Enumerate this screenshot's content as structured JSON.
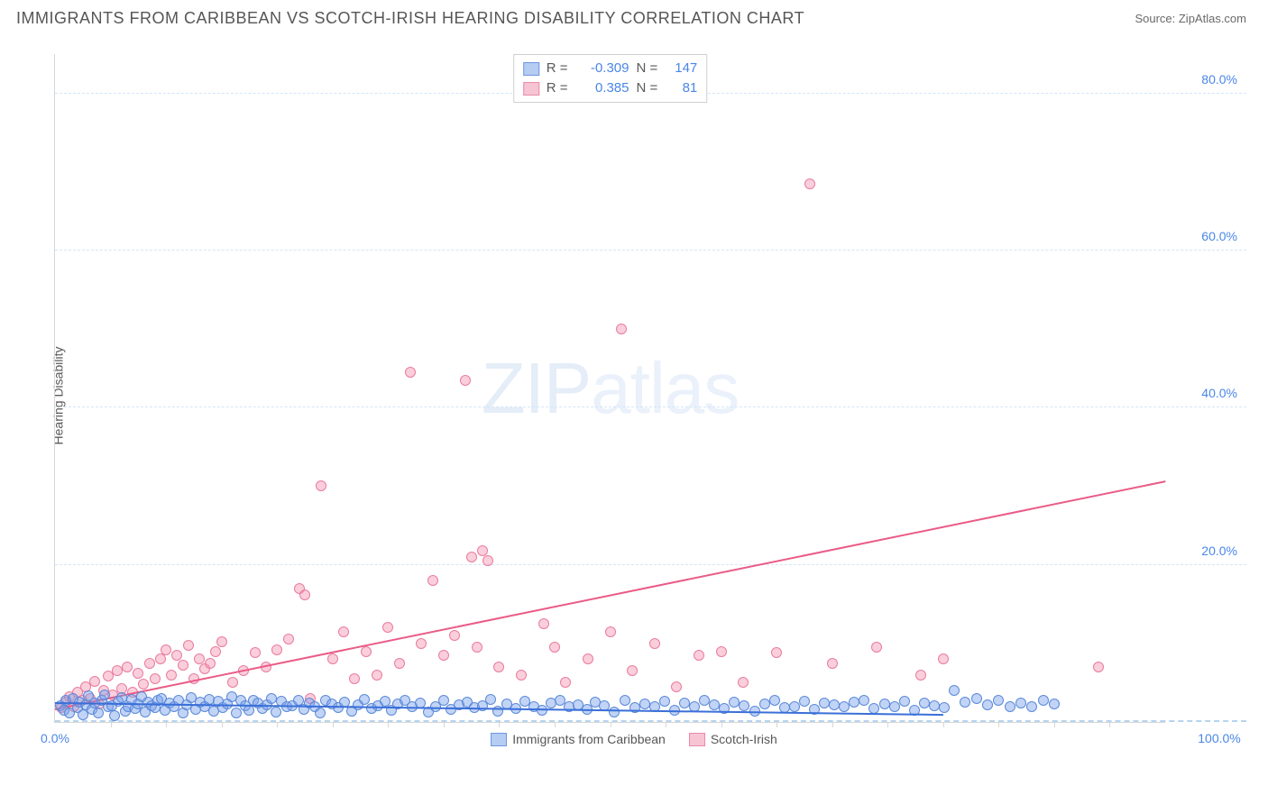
{
  "title": "IMMIGRANTS FROM CARIBBEAN VS SCOTCH-IRISH HEARING DISABILITY CORRELATION CHART",
  "source_prefix": "Source: ",
  "source": "ZipAtlas.com",
  "ylabel": "Hearing Disability",
  "watermark": {
    "part1": "ZIP",
    "part2": "atlas"
  },
  "chart": {
    "type": "scatter",
    "xlim": [
      0,
      100
    ],
    "ylim": [
      0,
      85
    ],
    "xtick_label_min": "0.0%",
    "xtick_label_max": "100.0%",
    "ytick_labels": [
      "20.0%",
      "40.0%",
      "60.0%",
      "80.0%"
    ],
    "ytick_values": [
      20,
      40,
      60,
      80
    ],
    "xtick_minor_step": 5,
    "background_color": "#ffffff",
    "gridline_color": "#d4e6f7",
    "axis_color": "#d6d6d6",
    "tick_label_color": "#4a86e8",
    "point_radius": 6,
    "point_opacity": 0.55,
    "series": [
      {
        "id": "caribbean",
        "label": "Immigrants from Caribbean",
        "color_fill": "rgba(120,160,235,0.45)",
        "color_stroke": "#5b89d8",
        "swatch_fill": "#b5ccf3",
        "swatch_border": "#6f98e0",
        "correlation": {
          "R": "-0.309",
          "N": "147"
        },
        "regression": {
          "x1": 0,
          "y1": 2.3,
          "x2": 80,
          "y2": 0.8,
          "color": "#3a6fd8",
          "width": 2
        },
        "points": [
          [
            0.5,
            2.1
          ],
          [
            0.8,
            1.5
          ],
          [
            1.0,
            2.8
          ],
          [
            1.3,
            1.2
          ],
          [
            1.6,
            3.0
          ],
          [
            2.0,
            1.8
          ],
          [
            2.2,
            2.5
          ],
          [
            2.5,
            0.9
          ],
          [
            2.8,
            2.2
          ],
          [
            3.0,
            3.3
          ],
          [
            3.3,
            1.6
          ],
          [
            3.6,
            2.4
          ],
          [
            3.9,
            1.1
          ],
          [
            4.2,
            2.7
          ],
          [
            4.5,
            3.5
          ],
          [
            4.8,
            1.9
          ],
          [
            5.1,
            2.1
          ],
          [
            5.4,
            0.8
          ],
          [
            5.7,
            2.6
          ],
          [
            6.0,
            3.1
          ],
          [
            6.3,
            1.4
          ],
          [
            6.6,
            2.0
          ],
          [
            6.9,
            2.9
          ],
          [
            7.2,
            1.7
          ],
          [
            7.5,
            2.3
          ],
          [
            7.8,
            3.2
          ],
          [
            8.1,
            1.3
          ],
          [
            8.4,
            2.5
          ],
          [
            8.7,
            2.1
          ],
          [
            9.0,
            1.8
          ],
          [
            9.3,
            2.7
          ],
          [
            9.6,
            3.0
          ],
          [
            9.9,
            1.5
          ],
          [
            10.3,
            2.4
          ],
          [
            10.7,
            1.9
          ],
          [
            11.1,
            2.8
          ],
          [
            11.5,
            1.2
          ],
          [
            11.9,
            2.2
          ],
          [
            12.3,
            3.1
          ],
          [
            12.7,
            1.6
          ],
          [
            13.1,
            2.5
          ],
          [
            13.5,
            2.0
          ],
          [
            13.9,
            2.9
          ],
          [
            14.3,
            1.4
          ],
          [
            14.7,
            2.6
          ],
          [
            15.1,
            1.8
          ],
          [
            15.5,
            2.3
          ],
          [
            15.9,
            3.2
          ],
          [
            16.3,
            1.1
          ],
          [
            16.7,
            2.7
          ],
          [
            17.1,
            2.1
          ],
          [
            17.5,
            1.5
          ],
          [
            17.9,
            2.8
          ],
          [
            18.3,
            2.4
          ],
          [
            18.7,
            1.7
          ],
          [
            19.1,
            2.2
          ],
          [
            19.5,
            3.0
          ],
          [
            19.9,
            1.3
          ],
          [
            20.4,
            2.6
          ],
          [
            20.9,
            1.9
          ],
          [
            21.4,
            2.1
          ],
          [
            21.9,
            2.8
          ],
          [
            22.4,
            1.6
          ],
          [
            22.9,
            2.4
          ],
          [
            23.4,
            2.0
          ],
          [
            23.9,
            1.2
          ],
          [
            24.4,
            2.7
          ],
          [
            24.9,
            2.3
          ],
          [
            25.5,
            1.8
          ],
          [
            26.1,
            2.5
          ],
          [
            26.7,
            1.4
          ],
          [
            27.3,
            2.2
          ],
          [
            27.9,
            2.9
          ],
          [
            28.5,
            1.7
          ],
          [
            29.1,
            2.1
          ],
          [
            29.7,
            2.6
          ],
          [
            30.3,
            1.5
          ],
          [
            30.9,
            2.3
          ],
          [
            31.5,
            2.8
          ],
          [
            32.2,
            1.9
          ],
          [
            32.9,
            2.4
          ],
          [
            33.6,
            1.3
          ],
          [
            34.3,
            2.0
          ],
          [
            35.0,
            2.7
          ],
          [
            35.7,
            1.6
          ],
          [
            36.4,
            2.2
          ],
          [
            37.1,
            2.5
          ],
          [
            37.8,
            1.8
          ],
          [
            38.5,
            2.1
          ],
          [
            39.2,
            2.9
          ],
          [
            39.9,
            1.4
          ],
          [
            40.7,
            2.3
          ],
          [
            41.5,
            1.7
          ],
          [
            42.3,
            2.6
          ],
          [
            43.1,
            2.0
          ],
          [
            43.9,
            1.5
          ],
          [
            44.7,
            2.4
          ],
          [
            45.5,
            2.8
          ],
          [
            46.3,
            1.9
          ],
          [
            47.1,
            2.2
          ],
          [
            47.9,
            1.6
          ],
          [
            48.7,
            2.5
          ],
          [
            49.5,
            2.1
          ],
          [
            50.4,
            1.3
          ],
          [
            51.3,
            2.7
          ],
          [
            52.2,
            1.8
          ],
          [
            53.1,
            2.3
          ],
          [
            54.0,
            2.0
          ],
          [
            54.9,
            2.6
          ],
          [
            55.8,
            1.5
          ],
          [
            56.7,
            2.4
          ],
          [
            57.6,
            1.9
          ],
          [
            58.5,
            2.8
          ],
          [
            59.4,
            2.2
          ],
          [
            60.3,
            1.7
          ],
          [
            61.2,
            2.5
          ],
          [
            62.1,
            2.1
          ],
          [
            63.0,
            1.4
          ],
          [
            63.9,
            2.3
          ],
          [
            64.8,
            2.7
          ],
          [
            65.7,
            1.8
          ],
          [
            66.6,
            2.0
          ],
          [
            67.5,
            2.6
          ],
          [
            68.4,
            1.6
          ],
          [
            69.3,
            2.4
          ],
          [
            70.2,
            2.2
          ],
          [
            71.1,
            1.9
          ],
          [
            72.0,
            2.5
          ],
          [
            72.9,
            2.8
          ],
          [
            73.8,
            1.7
          ],
          [
            74.7,
            2.3
          ],
          [
            75.6,
            2.0
          ],
          [
            76.5,
            2.6
          ],
          [
            77.4,
            1.5
          ],
          [
            78.3,
            2.4
          ],
          [
            79.2,
            2.1
          ],
          [
            80.1,
            1.8
          ],
          [
            81.0,
            4.0
          ],
          [
            82.0,
            2.5
          ],
          [
            83.0,
            3.0
          ],
          [
            84.0,
            2.2
          ],
          [
            85.0,
            2.7
          ],
          [
            86.0,
            1.9
          ],
          [
            87.0,
            2.4
          ],
          [
            88.0,
            2.0
          ],
          [
            89.0,
            2.8
          ],
          [
            90.0,
            2.3
          ]
        ]
      },
      {
        "id": "scotch-irish",
        "label": "Scotch-Irish",
        "color_fill": "rgba(243,140,170,0.42)",
        "color_stroke": "#e97ba0",
        "swatch_fill": "#f6c4d3",
        "swatch_border": "#eb8aab",
        "correlation": {
          "R": "0.385",
          "N": "81"
        },
        "regression": {
          "x1": 0,
          "y1": 1.5,
          "x2": 100,
          "y2": 30.5,
          "color": "#ea5b87",
          "width": 2
        },
        "points": [
          [
            0.6,
            1.8
          ],
          [
            1.0,
            2.5
          ],
          [
            1.3,
            3.2
          ],
          [
            1.7,
            2.0
          ],
          [
            2.0,
            3.8
          ],
          [
            2.4,
            2.7
          ],
          [
            2.8,
            4.5
          ],
          [
            3.2,
            3.0
          ],
          [
            3.6,
            5.2
          ],
          [
            4.0,
            2.3
          ],
          [
            4.4,
            4.0
          ],
          [
            4.8,
            5.8
          ],
          [
            5.2,
            3.5
          ],
          [
            5.6,
            6.5
          ],
          [
            6.0,
            4.2
          ],
          [
            6.5,
            7.0
          ],
          [
            7.0,
            3.8
          ],
          [
            7.5,
            6.2
          ],
          [
            8.0,
            4.8
          ],
          [
            8.5,
            7.5
          ],
          [
            9.0,
            5.5
          ],
          [
            9.5,
            8.0
          ],
          [
            10.0,
            9.2
          ],
          [
            10.5,
            6.0
          ],
          [
            11.0,
            8.5
          ],
          [
            11.5,
            7.2
          ],
          [
            12.0,
            9.8
          ],
          [
            12.5,
            5.5
          ],
          [
            13.0,
            8.0
          ],
          [
            13.5,
            6.8
          ],
          [
            14.0,
            7.5
          ],
          [
            14.5,
            9.0
          ],
          [
            15.0,
            10.2
          ],
          [
            16.0,
            5.0
          ],
          [
            17.0,
            6.5
          ],
          [
            18.0,
            8.8
          ],
          [
            19.0,
            7.0
          ],
          [
            20.0,
            9.2
          ],
          [
            21.0,
            10.5
          ],
          [
            22.0,
            17.0
          ],
          [
            22.5,
            16.2
          ],
          [
            23.0,
            3.0
          ],
          [
            24.0,
            30.0
          ],
          [
            25.0,
            8.0
          ],
          [
            26.0,
            11.5
          ],
          [
            27.0,
            5.5
          ],
          [
            28.0,
            9.0
          ],
          [
            29.0,
            6.0
          ],
          [
            30.0,
            12.0
          ],
          [
            31.0,
            7.5
          ],
          [
            32.0,
            44.5
          ],
          [
            33.0,
            10.0
          ],
          [
            34.0,
            18.0
          ],
          [
            35.0,
            8.5
          ],
          [
            36.0,
            11.0
          ],
          [
            37.0,
            43.5
          ],
          [
            37.5,
            21.0
          ],
          [
            38.0,
            9.5
          ],
          [
            38.5,
            21.8
          ],
          [
            39.0,
            20.5
          ],
          [
            40.0,
            7.0
          ],
          [
            42.0,
            6.0
          ],
          [
            44.0,
            12.5
          ],
          [
            45.0,
            9.5
          ],
          [
            46.0,
            5.0
          ],
          [
            48.0,
            8.0
          ],
          [
            50.0,
            11.5
          ],
          [
            51.0,
            50.0
          ],
          [
            52.0,
            6.5
          ],
          [
            54.0,
            10.0
          ],
          [
            56.0,
            4.5
          ],
          [
            58.0,
            8.5
          ],
          [
            60.0,
            9.0
          ],
          [
            62.0,
            5.0
          ],
          [
            65.0,
            8.8
          ],
          [
            68.0,
            68.5
          ],
          [
            70.0,
            7.5
          ],
          [
            74.0,
            9.5
          ],
          [
            78.0,
            6.0
          ],
          [
            80.0,
            8.0
          ],
          [
            94.0,
            7.0
          ]
        ]
      }
    ]
  },
  "legend_top": {
    "R_label": "R =",
    "N_label": "N ="
  }
}
